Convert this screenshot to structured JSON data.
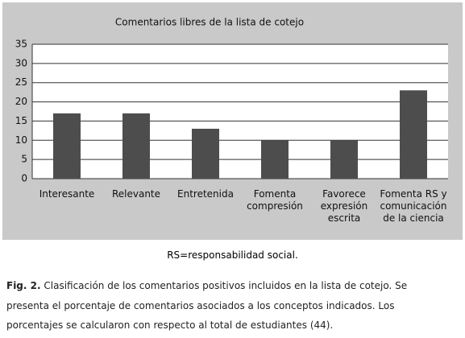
{
  "chart_data": {
    "type": "bar",
    "title": "Comentarios libres de la lista de cotejo",
    "categories": [
      "Interesante",
      "Relevante",
      "Entretenida",
      "Fomenta compresión",
      "Favorece expresión escrita",
      "Fomenta RS y comunicación de la ciencia"
    ],
    "values": [
      17,
      17,
      13,
      10,
      10,
      23
    ],
    "color": "#4d4d4d",
    "ylim": [
      0,
      35
    ],
    "yticks": [
      0,
      5,
      10,
      15,
      20,
      25,
      30,
      35
    ],
    "grid": true
  },
  "note": "RS=responsabilidad social.",
  "caption_label": "Fig. 2.",
  "caption": "Clasificación de los comentarios positivos incluidos en la lista de cotejo. Se presenta el porcentaje de comentarios asociados a los conceptos indicados. Los porcentajes se calcularon con respecto al total de estudiantes (44)."
}
